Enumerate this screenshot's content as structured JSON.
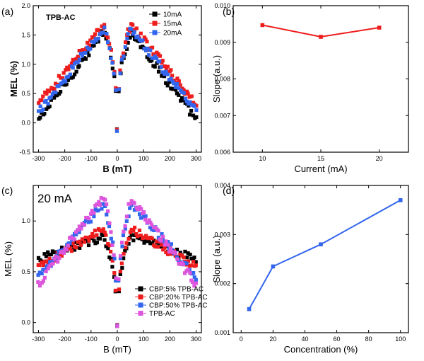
{
  "chart_data": [
    {
      "panel": "(a)",
      "type": "scatter",
      "annotation": "TPB-AC",
      "xlabel": "B (mT)",
      "ylabel": "MEL (%)",
      "xlim": [
        -320,
        320
      ],
      "ylim": [
        -0.5,
        2.0
      ],
      "xticks": [
        -300,
        -200,
        -100,
        0,
        100,
        200,
        300
      ],
      "yticks": [
        -0.5,
        0.0,
        0.5,
        1.0,
        1.5,
        2.0
      ],
      "xtick_labels": [
        "-300",
        "-200",
        "-100",
        "0",
        "100",
        "200",
        "300"
      ],
      "ytick_labels": [
        "-0.5",
        "0.0",
        "0.5",
        "1.0",
        "1.5",
        "2.0"
      ],
      "legend_position": "top-right",
      "series": [
        {
          "name": "10mA",
          "color": "#000000",
          "peak": 1.55,
          "edge": 0.05,
          "dip": -0.1
        },
        {
          "name": "15mA",
          "color": "#ee1c1c",
          "peak": 1.68,
          "edge": 0.32,
          "dip": -0.12
        },
        {
          "name": "20mA",
          "color": "#3366ee",
          "peak": 1.62,
          "edge": 0.18,
          "dip": -0.14
        }
      ]
    },
    {
      "panel": "(b)",
      "type": "line",
      "xlabel": "Current (mA)",
      "ylabel": "Slope (a.u.)",
      "xlim": [
        7.5,
        22.5
      ],
      "ylim": [
        0.006,
        0.01
      ],
      "xticks": [
        10,
        15,
        20
      ],
      "yticks": [
        0.006,
        0.007,
        0.008,
        0.009,
        0.01
      ],
      "xtick_labels": [
        "10",
        "15",
        "20"
      ],
      "ytick_labels": [
        "0.006",
        "0.007",
        "0.008",
        "0.009",
        "0.010"
      ],
      "series": [
        {
          "color": "#ee1c1c",
          "x": [
            10,
            15,
            20
          ],
          "y": [
            0.00947,
            0.00915,
            0.0094
          ]
        }
      ]
    },
    {
      "panel": "(c)",
      "type": "scatter",
      "annotation": "20 mA",
      "xlabel": "B (mT)",
      "ylabel": "MEL (%)",
      "xlim": [
        -320,
        320
      ],
      "ylim": [
        -0.1,
        1.35
      ],
      "xticks": [
        -300,
        -200,
        -100,
        0,
        100,
        200,
        300
      ],
      "yticks": [
        0.0,
        0.5,
        1.0
      ],
      "xtick_labels": [
        "-300",
        "-200",
        "-100",
        "0",
        "100",
        "200",
        "300"
      ],
      "ytick_labels": [
        "0.0",
        "0.5",
        "1.0"
      ],
      "legend_position": "bottom-right",
      "series": [
        {
          "name": "CBP:5% TPB-AC",
          "color": "#000000",
          "peak": 0.85,
          "edge": 0.62,
          "dip": -0.03
        },
        {
          "name": "CBP:20% TPB-AC",
          "color": "#ee1c1c",
          "peak": 0.92,
          "edge": 0.55,
          "dip": -0.03
        },
        {
          "name": "CBP:50% TPB-AC",
          "color": "#3366ee",
          "peak": 1.18,
          "edge": 0.45,
          "dip": -0.03
        },
        {
          "name": "TPB-AC",
          "color": "#dd55dd",
          "peak": 1.24,
          "edge": 0.38,
          "dip": -0.03
        }
      ]
    },
    {
      "panel": "(d)",
      "type": "line",
      "xlabel": "Concentration (%)",
      "ylabel": "Slope (a.u.)",
      "xlim": [
        -5,
        105
      ],
      "ylim": [
        0.001,
        0.004
      ],
      "xticks": [
        0,
        20,
        40,
        60,
        80,
        100
      ],
      "yticks": [
        0.001,
        0.002,
        0.003,
        0.004
      ],
      "xtick_labels": [
        "0",
        "20",
        "40",
        "60",
        "80",
        "100"
      ],
      "ytick_labels": [
        "0.001",
        "0.002",
        "0.003",
        "0.004"
      ],
      "series": [
        {
          "color": "#3366ee",
          "x": [
            5,
            20,
            50,
            100
          ],
          "y": [
            0.00148,
            0.00235,
            0.0028,
            0.0037
          ]
        }
      ]
    }
  ]
}
